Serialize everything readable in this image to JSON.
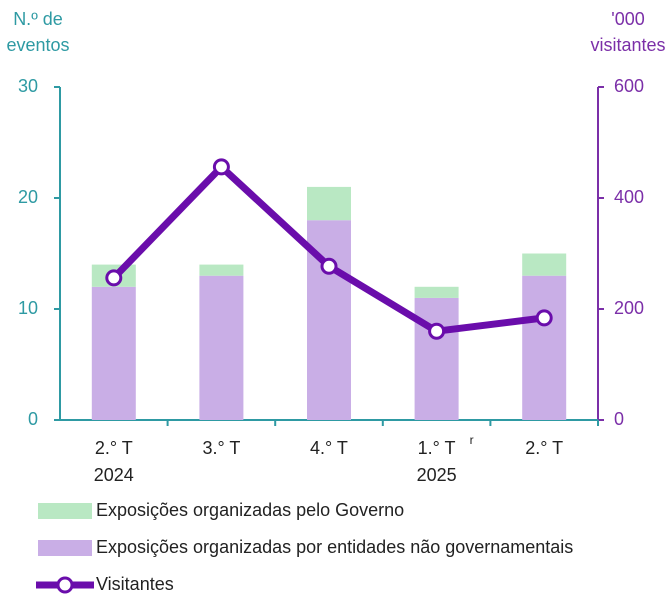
{
  "chart_data": {
    "type": "bar",
    "stacked": true,
    "ylabel": [
      "N.º de",
      "eventos"
    ],
    "y2label": [
      "'000",
      "visitantes"
    ],
    "categories": [
      "2.° T",
      "3.° T",
      "4.° T",
      "1.° T",
      "2.° T"
    ],
    "category_years": [
      "2024",
      null,
      null,
      "2025",
      null
    ],
    "annotations": [
      {
        "text": "r",
        "category_index": 3
      }
    ],
    "series": [
      {
        "name": "Exposições organizadas pelo Governo",
        "type": "bar",
        "color": "#b9e8c3",
        "values": [
          2,
          1,
          3,
          1,
          2
        ]
      },
      {
        "name": "Exposições organizadas por entidades não governamentais",
        "type": "bar",
        "color": "#c9aee6",
        "values": [
          12,
          13,
          18,
          11,
          13
        ]
      },
      {
        "name": "Visitantes",
        "type": "line",
        "axis": "y2",
        "color": "#6a0dab",
        "values": [
          256,
          456,
          277,
          160,
          184
        ]
      }
    ],
    "ylim": [
      0,
      30
    ],
    "yticks": [
      0,
      10,
      20,
      30
    ],
    "y2lim": [
      0,
      600
    ],
    "y2ticks": [
      0,
      200,
      400,
      600
    ],
    "left_axis_color": "#2e9aa3",
    "right_axis_color": "#7b2fa8"
  }
}
